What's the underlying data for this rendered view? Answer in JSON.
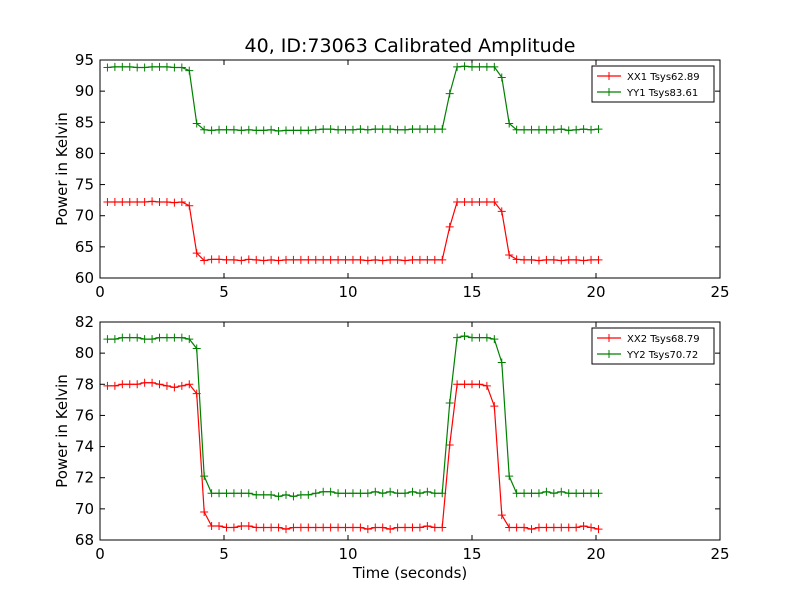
{
  "figure": {
    "title": "40, ID:73063 Calibrated Amplitude",
    "xlabel": "Time (seconds)"
  },
  "chart_data": [
    {
      "type": "line",
      "ylabel": "Power in Kelvin",
      "xlim": [
        0,
        25
      ],
      "ylim": [
        60,
        95
      ],
      "xticks": [
        "0",
        "5",
        "10",
        "15",
        "20",
        "25"
      ],
      "yticks": [
        "60",
        "65",
        "70",
        "75",
        "80",
        "85",
        "90",
        "95"
      ],
      "xtick_values": [
        0,
        5,
        10,
        15,
        20,
        25
      ],
      "ytick_values": [
        60,
        65,
        70,
        75,
        80,
        85,
        90,
        95
      ],
      "legend_position": "top-right",
      "series": [
        {
          "name": "XX1 Tsys62.89",
          "color": "#ff0000",
          "x": [
            0.3,
            0.6,
            0.9,
            1.2,
            1.5,
            1.8,
            2.1,
            2.4,
            2.7,
            3.0,
            3.3,
            3.6,
            3.9,
            4.2,
            4.5,
            4.8,
            5.1,
            5.4,
            5.7,
            6.0,
            6.3,
            6.6,
            6.9,
            7.2,
            7.5,
            7.8,
            8.1,
            8.4,
            8.7,
            9.0,
            9.3,
            9.6,
            9.9,
            10.2,
            10.5,
            10.8,
            11.1,
            11.4,
            11.7,
            12.0,
            12.3,
            12.6,
            12.9,
            13.2,
            13.5,
            13.8,
            14.1,
            14.4,
            14.7,
            15.0,
            15.3,
            15.6,
            15.9,
            16.2,
            16.5,
            16.8,
            17.1,
            17.4,
            17.7,
            18.0,
            18.3,
            18.6,
            18.9,
            19.2,
            19.5,
            19.8,
            20.1
          ],
          "y": [
            72.2,
            72.2,
            72.2,
            72.2,
            72.2,
            72.2,
            72.3,
            72.2,
            72.2,
            72.1,
            72.2,
            71.6,
            64.0,
            62.8,
            63.0,
            63.0,
            62.9,
            62.9,
            62.8,
            63.0,
            62.9,
            62.8,
            62.9,
            62.8,
            62.9,
            62.9,
            62.9,
            62.9,
            62.9,
            62.9,
            62.9,
            62.9,
            62.9,
            62.9,
            62.9,
            62.8,
            62.9,
            62.8,
            62.9,
            62.9,
            62.8,
            62.9,
            62.9,
            62.9,
            62.9,
            62.9,
            68.2,
            72.2,
            72.2,
            72.2,
            72.2,
            72.2,
            72.2,
            70.7,
            63.7,
            63.0,
            62.9,
            62.9,
            62.8,
            62.9,
            62.9,
            62.8,
            62.9,
            62.9,
            62.8,
            62.9,
            62.9
          ]
        },
        {
          "name": "YY1 Tsys83.61",
          "color": "#008000",
          "x": [
            0.3,
            0.6,
            0.9,
            1.2,
            1.5,
            1.8,
            2.1,
            2.4,
            2.7,
            3.0,
            3.3,
            3.6,
            3.9,
            4.2,
            4.5,
            4.8,
            5.1,
            5.4,
            5.7,
            6.0,
            6.3,
            6.6,
            6.9,
            7.2,
            7.5,
            7.8,
            8.1,
            8.4,
            8.7,
            9.0,
            9.3,
            9.6,
            9.9,
            10.2,
            10.5,
            10.8,
            11.1,
            11.4,
            11.7,
            12.0,
            12.3,
            12.6,
            12.9,
            13.2,
            13.5,
            13.8,
            14.1,
            14.4,
            14.7,
            15.0,
            15.3,
            15.6,
            15.9,
            16.2,
            16.5,
            16.8,
            17.1,
            17.4,
            17.7,
            18.0,
            18.3,
            18.6,
            18.9,
            19.2,
            19.5,
            19.8,
            20.1
          ],
          "y": [
            93.8,
            93.9,
            93.9,
            93.9,
            93.8,
            93.8,
            93.9,
            93.9,
            93.9,
            93.8,
            93.8,
            93.3,
            84.8,
            83.8,
            83.7,
            83.8,
            83.8,
            83.8,
            83.7,
            83.8,
            83.7,
            83.7,
            83.8,
            83.6,
            83.7,
            83.7,
            83.7,
            83.7,
            83.8,
            83.9,
            83.9,
            83.8,
            83.8,
            83.8,
            83.9,
            83.8,
            83.9,
            83.9,
            83.9,
            83.8,
            83.8,
            83.9,
            83.9,
            83.9,
            83.9,
            83.9,
            89.6,
            93.9,
            94.0,
            93.9,
            93.9,
            93.9,
            93.9,
            92.2,
            84.8,
            83.8,
            83.8,
            83.8,
            83.8,
            83.8,
            83.8,
            83.9,
            83.7,
            83.8,
            83.9,
            83.8,
            83.9
          ]
        }
      ]
    },
    {
      "type": "line",
      "ylabel": "Power in Kelvin",
      "xlabel": "Time (seconds)",
      "xlim": [
        0,
        25
      ],
      "ylim": [
        68,
        82
      ],
      "xticks": [
        "0",
        "5",
        "10",
        "15",
        "20",
        "25"
      ],
      "yticks": [
        "68",
        "70",
        "72",
        "74",
        "76",
        "78",
        "80",
        "82"
      ],
      "xtick_values": [
        0,
        5,
        10,
        15,
        20,
        25
      ],
      "ytick_values": [
        68,
        70,
        72,
        74,
        76,
        78,
        80,
        82
      ],
      "legend_position": "top-right",
      "series": [
        {
          "name": "XX2 Tsys68.79",
          "color": "#ff0000",
          "x": [
            0.3,
            0.6,
            0.9,
            1.2,
            1.5,
            1.8,
            2.1,
            2.4,
            2.7,
            3.0,
            3.3,
            3.6,
            3.9,
            4.2,
            4.5,
            4.8,
            5.1,
            5.4,
            5.7,
            6.0,
            6.3,
            6.6,
            6.9,
            7.2,
            7.5,
            7.8,
            8.1,
            8.4,
            8.7,
            9.0,
            9.3,
            9.6,
            9.9,
            10.2,
            10.5,
            10.8,
            11.1,
            11.4,
            11.7,
            12.0,
            12.3,
            12.6,
            12.9,
            13.2,
            13.5,
            13.8,
            14.1,
            14.4,
            14.7,
            15.0,
            15.3,
            15.6,
            15.9,
            16.2,
            16.5,
            16.8,
            17.1,
            17.4,
            17.7,
            18.0,
            18.3,
            18.6,
            18.9,
            19.2,
            19.5,
            19.8,
            20.1
          ],
          "y": [
            77.9,
            77.9,
            78.0,
            78.0,
            78.0,
            78.1,
            78.1,
            78.0,
            77.9,
            77.8,
            77.9,
            78.0,
            77.4,
            69.8,
            68.9,
            68.9,
            68.8,
            68.8,
            68.9,
            68.9,
            68.8,
            68.8,
            68.8,
            68.8,
            68.7,
            68.8,
            68.8,
            68.8,
            68.8,
            68.8,
            68.8,
            68.8,
            68.8,
            68.8,
            68.8,
            68.7,
            68.8,
            68.8,
            68.7,
            68.8,
            68.8,
            68.8,
            68.8,
            68.9,
            68.8,
            68.8,
            74.1,
            78.0,
            78.0,
            78.0,
            78.0,
            77.9,
            76.6,
            69.6,
            68.8,
            68.8,
            68.8,
            68.7,
            68.8,
            68.8,
            68.8,
            68.8,
            68.8,
            68.8,
            68.9,
            68.8,
            68.7
          ],
          "note_x_shift": 0
        },
        {
          "name": "YY2 Tsys70.72",
          "color": "#008000",
          "x": [
            0.3,
            0.6,
            0.9,
            1.2,
            1.5,
            1.8,
            2.1,
            2.4,
            2.7,
            3.0,
            3.3,
            3.6,
            3.9,
            4.2,
            4.5,
            4.8,
            5.1,
            5.4,
            5.7,
            6.0,
            6.3,
            6.6,
            6.9,
            7.2,
            7.5,
            7.8,
            8.1,
            8.4,
            8.7,
            9.0,
            9.3,
            9.6,
            9.9,
            10.2,
            10.5,
            10.8,
            11.1,
            11.4,
            11.7,
            12.0,
            12.3,
            12.6,
            12.9,
            13.2,
            13.5,
            13.8,
            14.1,
            14.4,
            14.7,
            15.0,
            15.3,
            15.6,
            15.9,
            16.2,
            16.5,
            16.8,
            17.1,
            17.4,
            17.7,
            18.0,
            18.3,
            18.6,
            18.9,
            19.2,
            19.5,
            19.8,
            20.1
          ],
          "y": [
            80.9,
            80.9,
            81.0,
            81.0,
            81.0,
            80.9,
            80.9,
            81.0,
            81.0,
            81.0,
            81.0,
            80.9,
            80.3,
            72.1,
            71.0,
            71.0,
            71.0,
            71.0,
            71.0,
            71.0,
            70.9,
            70.9,
            70.9,
            70.8,
            70.9,
            70.8,
            70.9,
            70.9,
            71.0,
            71.1,
            71.1,
            71.0,
            71.0,
            71.0,
            71.0,
            71.0,
            71.1,
            71.0,
            71.1,
            71.0,
            71.0,
            71.1,
            71.0,
            71.1,
            71.0,
            71.0,
            76.8,
            81.0,
            81.1,
            81.0,
            81.0,
            81.0,
            80.9,
            79.4,
            72.1,
            71.0,
            71.0,
            71.0,
            71.0,
            71.1,
            71.0,
            71.1,
            71.0,
            71.0,
            71.0,
            71.0,
            71.0
          ]
        }
      ]
    }
  ]
}
